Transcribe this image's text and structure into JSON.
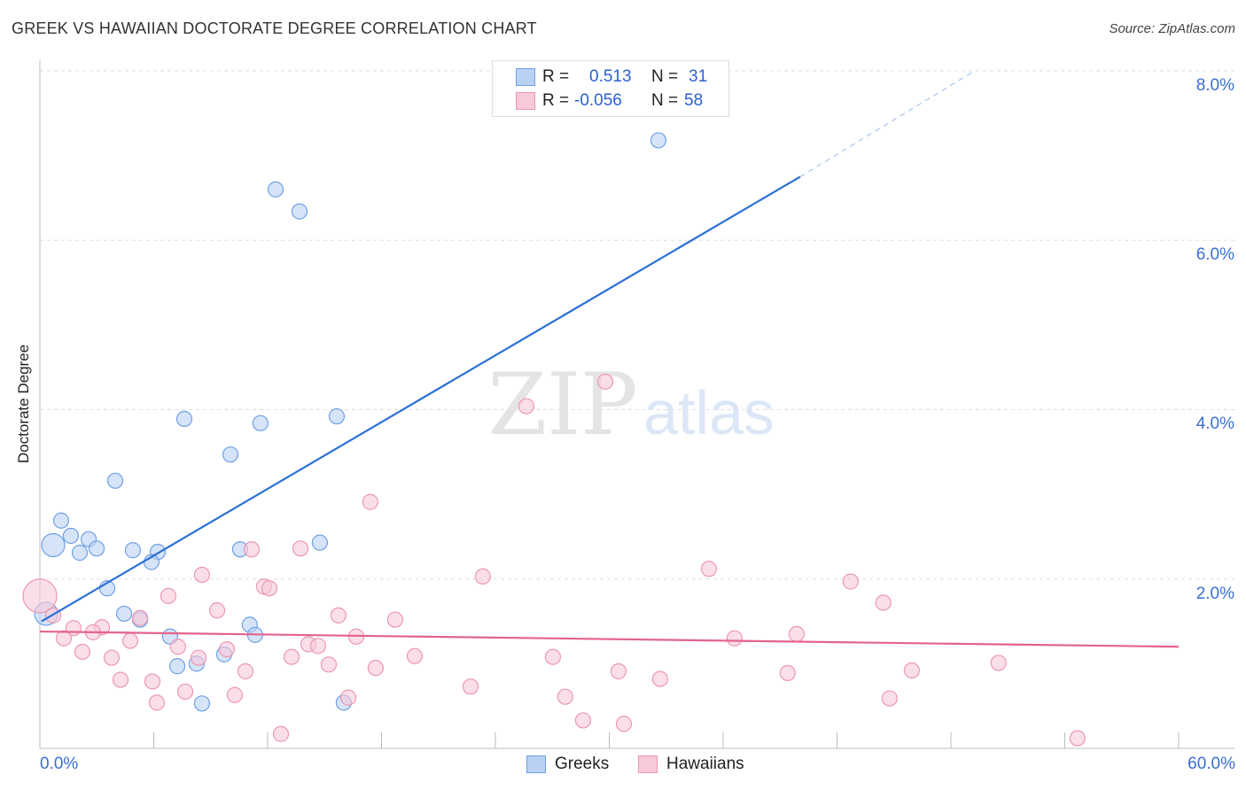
{
  "chart_data": {
    "type": "scatter",
    "title": "GREEK VS HAWAIIAN DOCTORATE DEGREE CORRELATION CHART",
    "source": "Source: ZipAtlas.com",
    "xlabel": "",
    "ylabel": "Doctorate Degree",
    "xlim": [
      0,
      60
    ],
    "ylim": [
      0,
      8
    ],
    "x_tick_labels": [
      "0.0%",
      "60.0%"
    ],
    "y_ticks": [
      2,
      4,
      6,
      8
    ],
    "y_tick_labels": [
      "2.0%",
      "4.0%",
      "6.0%",
      "8.0%"
    ],
    "grid": true,
    "legend": {
      "position": "top-center",
      "rows": [
        {
          "r_label": "R =",
          "r": "0.513",
          "n_label": "N =",
          "n": "31"
        },
        {
          "r_label": "R =",
          "r": "-0.056",
          "n_label": "N =",
          "n": "58"
        }
      ]
    },
    "watermark": {
      "zip": "ZIP",
      "atlas": "atlas"
    },
    "series": [
      {
        "name": "Greeks",
        "color": "#6fa0e6",
        "fill": "#b9d2f3",
        "line_color": "#2a6fd6",
        "trend": {
          "x": [
            0.09,
            40.06
          ],
          "y": [
            1.5,
            6.75
          ],
          "dashed_to": [
            49.25,
            8.0
          ]
        },
        "points": [
          [
            32.59,
            7.18
          ],
          [
            12.42,
            6.6
          ],
          [
            13.68,
            6.34
          ],
          [
            7.61,
            3.89
          ],
          [
            11.62,
            3.84
          ],
          [
            15.64,
            3.92
          ],
          [
            10.04,
            3.47
          ],
          [
            3.97,
            3.16
          ],
          [
            1.12,
            2.69
          ],
          [
            1.63,
            2.51
          ],
          [
            0.7,
            2.4,
            "l"
          ],
          [
            2.57,
            2.47
          ],
          [
            2.1,
            2.31
          ],
          [
            2.99,
            2.36
          ],
          [
            4.9,
            2.34
          ],
          [
            6.21,
            2.32
          ],
          [
            5.88,
            2.2
          ],
          [
            10.55,
            2.35
          ],
          [
            14.75,
            2.43
          ],
          [
            3.55,
            1.89
          ],
          [
            0.33,
            1.59,
            "l"
          ],
          [
            4.44,
            1.59
          ],
          [
            5.28,
            1.52
          ],
          [
            11.06,
            1.46
          ],
          [
            11.34,
            1.34
          ],
          [
            6.86,
            1.32
          ],
          [
            9.71,
            1.11
          ],
          [
            8.26,
            1.0
          ],
          [
            7.24,
            0.97
          ],
          [
            8.54,
            0.53
          ],
          [
            16.01,
            0.54
          ]
        ]
      },
      {
        "name": "Hawaiians",
        "color": "#ec97b2",
        "fill": "#f8cad8",
        "line_color": "#e4638c",
        "trend": {
          "x": [
            0,
            60
          ],
          "y": [
            1.38,
            1.2
          ]
        },
        "points": [
          [
            29.79,
            4.33
          ],
          [
            25.63,
            4.04
          ],
          [
            17.41,
            2.91
          ],
          [
            11.16,
            2.35
          ],
          [
            13.73,
            2.36
          ],
          [
            35.25,
            2.12
          ],
          [
            23.34,
            2.03
          ],
          [
            8.54,
            2.05
          ],
          [
            42.72,
            1.97
          ],
          [
            11.81,
            1.91
          ],
          [
            12.09,
            1.89
          ],
          [
            6.77,
            1.8
          ],
          [
            0,
            1.8,
            "xl"
          ],
          [
            44.44,
            1.72
          ],
          [
            9.34,
            1.63
          ],
          [
            0.7,
            1.57
          ],
          [
            5.28,
            1.54
          ],
          [
            15.73,
            1.57
          ],
          [
            18.72,
            1.52
          ],
          [
            1.77,
            1.42
          ],
          [
            3.27,
            1.43
          ],
          [
            2.8,
            1.37
          ],
          [
            1.26,
            1.3
          ],
          [
            4.76,
            1.27
          ],
          [
            16.67,
            1.32
          ],
          [
            36.6,
            1.3
          ],
          [
            39.87,
            1.35
          ],
          [
            14.15,
            1.23
          ],
          [
            14.66,
            1.21
          ],
          [
            7.28,
            1.2
          ],
          [
            9.85,
            1.17
          ],
          [
            2.24,
            1.14
          ],
          [
            3.78,
            1.07
          ],
          [
            13.26,
            1.08
          ],
          [
            19.75,
            1.09
          ],
          [
            27.03,
            1.08
          ],
          [
            50.51,
            1.01
          ],
          [
            8.36,
            1.07
          ],
          [
            15.22,
            0.99
          ],
          [
            17.69,
            0.95
          ],
          [
            10.83,
            0.91
          ],
          [
            30.49,
            0.91
          ],
          [
            45.94,
            0.92
          ],
          [
            39.4,
            0.89
          ],
          [
            4.25,
            0.81
          ],
          [
            5.93,
            0.79
          ],
          [
            32.68,
            0.82
          ],
          [
            22.69,
            0.73
          ],
          [
            7.66,
            0.67
          ],
          [
            10.27,
            0.63
          ],
          [
            16.25,
            0.6
          ],
          [
            27.68,
            0.61
          ],
          [
            44.77,
            0.59
          ],
          [
            6.16,
            0.54
          ],
          [
            28.62,
            0.33
          ],
          [
            30.77,
            0.29
          ],
          [
            12.7,
            0.17
          ],
          [
            54.67,
            0.12
          ]
        ]
      }
    ]
  }
}
